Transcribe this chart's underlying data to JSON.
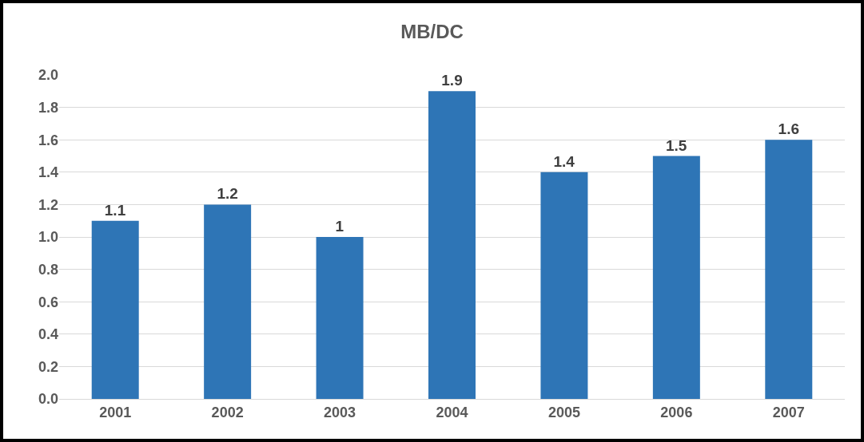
{
  "chart_data": {
    "type": "bar",
    "title": "MB/DC",
    "categories": [
      "2001",
      "2002",
      "2003",
      "2004",
      "2005",
      "2006",
      "2007"
    ],
    "values": [
      1.1,
      1.2,
      1,
      1.9,
      1.4,
      1.5,
      1.6
    ],
    "color": "#2e75b6",
    "ylim": [
      0,
      2.0
    ],
    "yticks": [
      {
        "value": 0,
        "label": "0.0"
      },
      {
        "value": 0.2,
        "label": "0.2"
      },
      {
        "value": 0.4,
        "label": "0.4"
      },
      {
        "value": 0.6,
        "label": "0.6"
      },
      {
        "value": 0.8,
        "label": "0.8"
      },
      {
        "value": 1.0,
        "label": "1.0"
      },
      {
        "value": 1.2,
        "label": "1.2"
      },
      {
        "value": 1.4,
        "label": "1.4"
      },
      {
        "value": 1.6,
        "label": "1.6"
      },
      {
        "value": 1.8,
        "label": "1.8"
      },
      {
        "value": 2.0,
        "label": "2.0"
      }
    ],
    "grid": "y",
    "data_labels": true
  }
}
